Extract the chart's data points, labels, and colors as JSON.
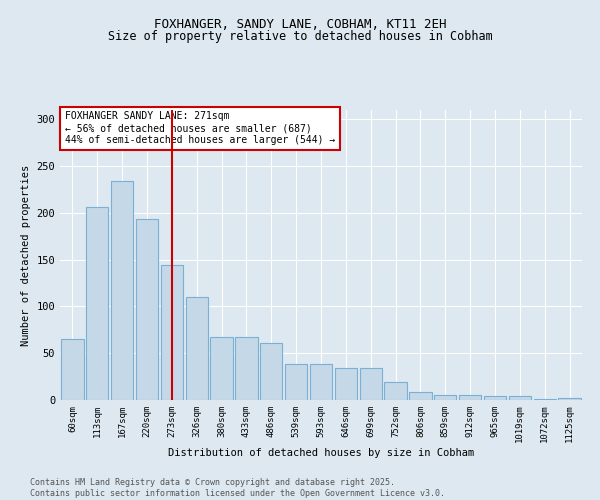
{
  "title_line1": "FOXHANGER, SANDY LANE, COBHAM, KT11 2EH",
  "title_line2": "Size of property relative to detached houses in Cobham",
  "xlabel": "Distribution of detached houses by size in Cobham",
  "ylabel": "Number of detached properties",
  "categories": [
    "60sqm",
    "113sqm",
    "167sqm",
    "220sqm",
    "273sqm",
    "326sqm",
    "380sqm",
    "433sqm",
    "486sqm",
    "539sqm",
    "593sqm",
    "646sqm",
    "699sqm",
    "752sqm",
    "806sqm",
    "859sqm",
    "912sqm",
    "965sqm",
    "1019sqm",
    "1072sqm",
    "1125sqm"
  ],
  "values": [
    65,
    206,
    234,
    193,
    144,
    110,
    67,
    67,
    61,
    39,
    39,
    34,
    34,
    19,
    9,
    5,
    5,
    4,
    4,
    1,
    2
  ],
  "bar_color": "#c5d8e8",
  "bar_edge_color": "#7ab0d4",
  "vline_position": 4,
  "vline_color": "#cc0000",
  "annotation_text": "FOXHANGER SANDY LANE: 271sqm\n← 56% of detached houses are smaller (687)\n44% of semi-detached houses are larger (544) →",
  "annotation_box_color": "#ffffff",
  "annotation_box_edge": "#cc0000",
  "ylim": [
    0,
    310
  ],
  "yticks": [
    0,
    50,
    100,
    150,
    200,
    250,
    300
  ],
  "bg_color": "#dde8f0",
  "grid_color": "#ffffff",
  "footer": "Contains HM Land Registry data © Crown copyright and database right 2025.\nContains public sector information licensed under the Open Government Licence v3.0."
}
